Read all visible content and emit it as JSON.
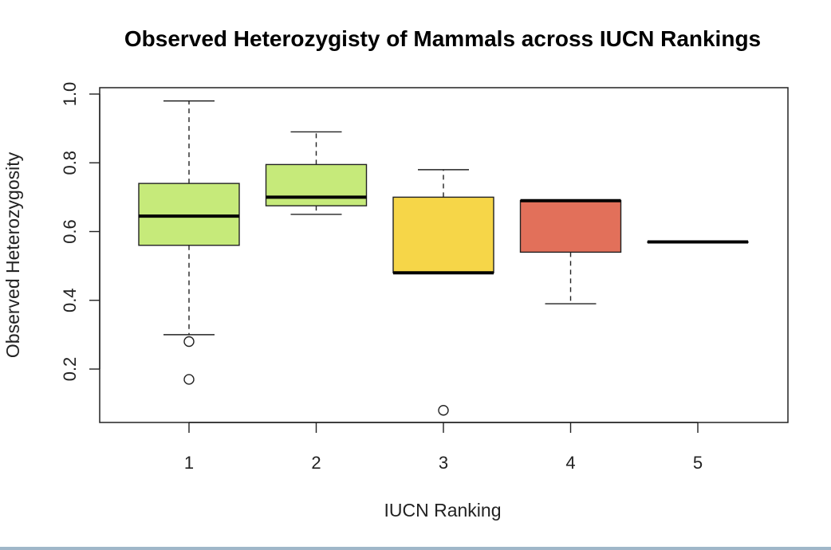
{
  "chart_data": {
    "type": "boxplot",
    "title": "Observed Heterozygisty of Mammals across IUCN Rankings",
    "xlabel": "IUCN Ranking",
    "ylabel": "Observed Heterozygosity",
    "categories": [
      "1",
      "2",
      "3",
      "4",
      "5"
    ],
    "y_ticks": [
      "0.2",
      "0.4",
      "0.6",
      "0.8",
      "1.0"
    ],
    "ylim": [
      0.05,
      1.02
    ],
    "grid": false,
    "boxes": [
      {
        "category": "1",
        "whisker_low": 0.3,
        "q1": 0.56,
        "median": 0.645,
        "q3": 0.74,
        "whisker_high": 0.98,
        "outliers": [
          0.28,
          0.17
        ],
        "color": "#c6ea7a"
      },
      {
        "category": "2",
        "whisker_low": 0.65,
        "q1": 0.675,
        "median": 0.7,
        "q3": 0.795,
        "whisker_high": 0.89,
        "outliers": [],
        "color": "#c6ea7a"
      },
      {
        "category": "3",
        "whisker_low": 0.48,
        "q1": 0.48,
        "median": 0.48,
        "q3": 0.7,
        "whisker_high": 0.78,
        "outliers": [
          0.08
        ],
        "color": "#f6d648"
      },
      {
        "category": "4",
        "whisker_low": 0.39,
        "q1": 0.54,
        "median": 0.69,
        "q3": 0.69,
        "whisker_high": 0.69,
        "outliers": [],
        "color": "#e2705a"
      },
      {
        "category": "5",
        "whisker_low": 0.57,
        "q1": 0.57,
        "median": 0.57,
        "q3": 0.57,
        "whisker_high": 0.57,
        "outliers": [],
        "color": "#e2705a"
      }
    ]
  }
}
